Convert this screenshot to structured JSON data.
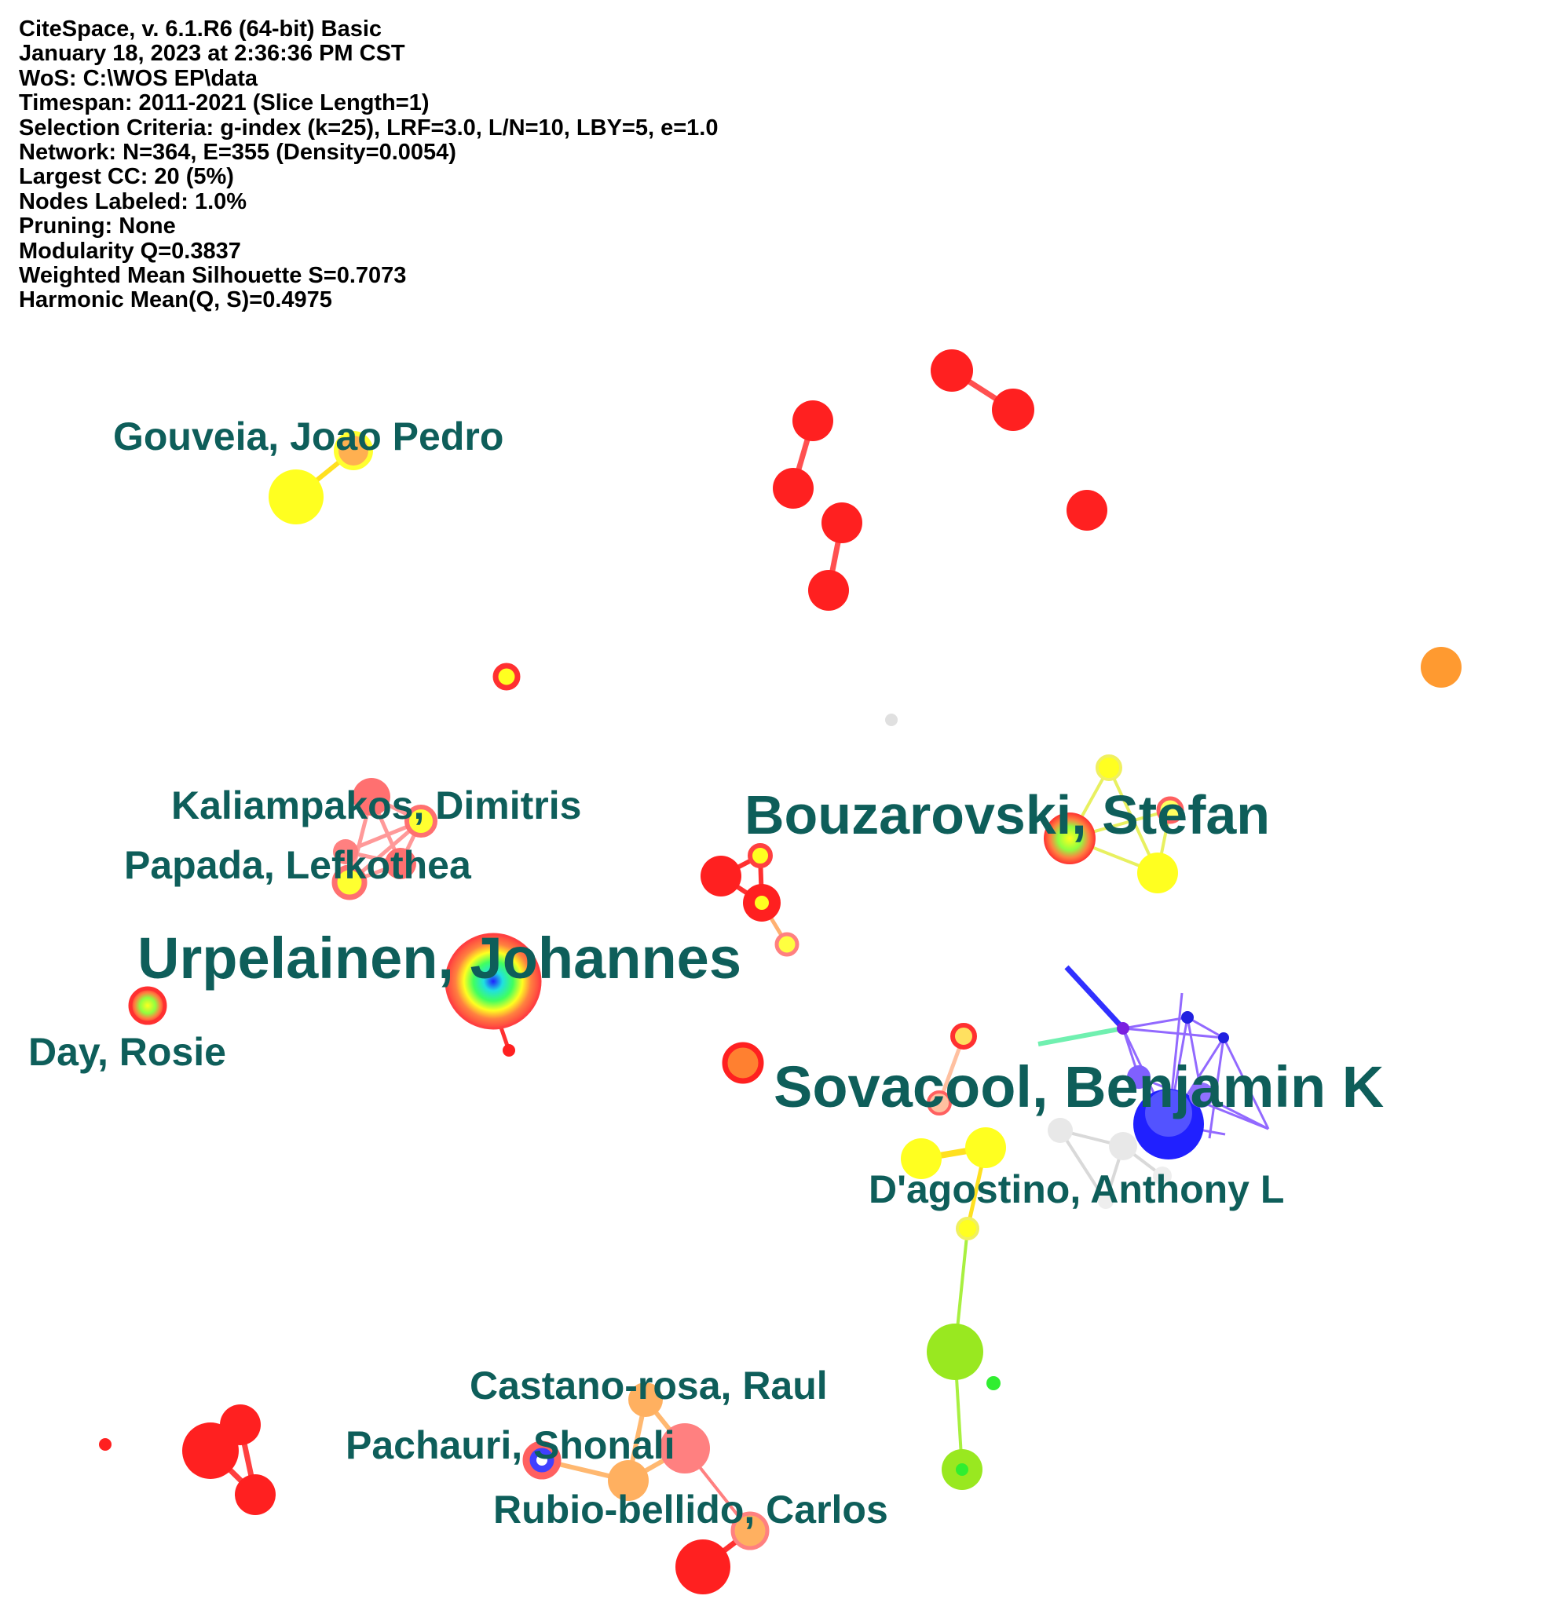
{
  "info_lines": [
    "CiteSpace, v. 6.1.R6 (64-bit) Basic",
    "January 18, 2023 at 2:36:36 PM CST",
    "WoS: C:\\WOS EP\\data",
    "Timespan: 2011-2021 (Slice Length=1)",
    "Selection Criteria: g-index (k=25), LRF=3.0, L/N=10, LBY=5, e=1.0",
    "Network: N=364, E=355 (Density=0.0054)",
    "Largest CC: 20 (5%)",
    "Nodes Labeled: 1.0%",
    "Pruning: None",
    "Modularity Q=0.3837",
    "Weighted Mean Silhouette S=0.7073",
    "Harmonic Mean(Q, S)=0.4975"
  ],
  "labels": {
    "gouveia": "Gouveia, Joao Pedro",
    "kaliampakos": "Kaliampakos, Dimitris",
    "papada": "Papada, Lefkothea",
    "bouzarovski": "Bouzarovski, Stefan",
    "urpelainen": "Urpelainen, Johannes",
    "day": "Day, Rosie",
    "sovacool": "Sovacool, Benjamin K",
    "dagostino": "D'agostino, Anthony L",
    "castano": "Castano-rosa, Raul",
    "pachauri": "Pachauri, Shonali",
    "rubio": "Rubio-bellido, Carlos"
  },
  "colors": {
    "label": "#0e5e5a",
    "recent_red": "#ff2020",
    "orange": "#ff9a30",
    "yellow": "#ffff20",
    "green": "#99ee20",
    "blue": "#2020ff",
    "purple": "#9040ff",
    "grey": "#e8e8e8"
  }
}
